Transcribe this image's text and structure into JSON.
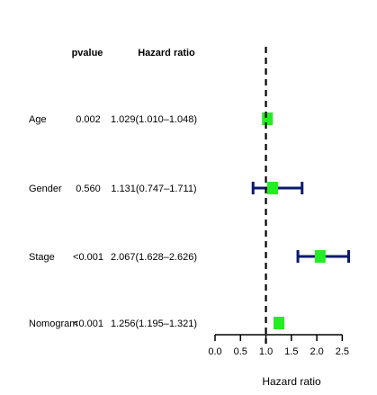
{
  "chart_data": {
    "type": "forest",
    "header": {
      "pvalue": "pvalue",
      "hazard_ratio": "Hazard ratio"
    },
    "rows": [
      {
        "name": "Age",
        "pvalue": "0.002",
        "hr_text": "1.029(1.010–1.048)",
        "hr": 1.029,
        "lower": 1.01,
        "upper": 1.048
      },
      {
        "name": "Gender",
        "pvalue": "0.560",
        "hr_text": "1.131(0.747–1.711)",
        "hr": 1.131,
        "lower": 0.747,
        "upper": 1.711
      },
      {
        "name": "Stage",
        "pvalue": "<0.001",
        "hr_text": "2.067(1.628–2.626)",
        "hr": 2.067,
        "lower": 1.628,
        "upper": 2.626
      },
      {
        "name": "Nomogram",
        "pvalue": "<0.001",
        "hr_text": "1.256(1.195–1.321)",
        "hr": 1.256,
        "lower": 1.195,
        "upper": 1.321
      }
    ],
    "reference_line": 1.0,
    "xlim": [
      0.0,
      2.9
    ],
    "xticks": [
      0.0,
      0.5,
      1.0,
      1.5,
      2.0,
      2.5
    ],
    "xtick_labels": [
      "0.0",
      "0.5",
      "1.0",
      "1.5",
      "2.0",
      "2.5"
    ],
    "xlabel": "Hazard ratio",
    "colors": {
      "point": "#22ee22",
      "ci": "#0a1a6e",
      "reference": "#000000"
    }
  }
}
